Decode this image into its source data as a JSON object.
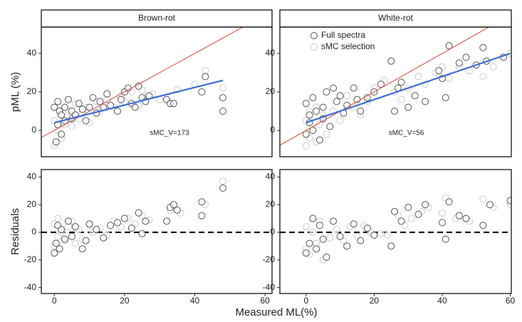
{
  "chart_data": [
    {
      "type": "scatter",
      "title": "Brown-rot",
      "ylabel": "pML (%)",
      "annotation": "sMC_V=173",
      "xlim": [
        -3.7,
        62
      ],
      "ylim": [
        -13.7,
        53.7
      ],
      "yticks": [
        0,
        20,
        40
      ],
      "series": [
        {
          "name": "Full spectra",
          "color": "#555555",
          "x": [
            0,
            0.5,
            1,
            1,
            1.5,
            2,
            2,
            3,
            3,
            4,
            5,
            5,
            6,
            7,
            8,
            9,
            10,
            11,
            12,
            13,
            14,
            15,
            16,
            18,
            19,
            20,
            21,
            22,
            23,
            24,
            25,
            26,
            27,
            32,
            33,
            34,
            42,
            43,
            48,
            48
          ],
          "values": [
            12,
            -6,
            15,
            3,
            10,
            -2,
            8,
            5,
            12,
            16,
            6,
            10,
            8,
            14,
            11,
            5,
            12,
            17,
            9,
            15,
            12,
            19,
            13,
            10,
            16,
            20,
            22,
            14,
            12,
            23,
            17,
            15,
            18,
            16,
            14,
            14,
            20,
            28,
            17,
            10
          ]
        },
        {
          "name": "sMC selection",
          "color": "#cccccc",
          "x": [
            0,
            0,
            1,
            1,
            2,
            2,
            3,
            4,
            5,
            6,
            7,
            8,
            9,
            10,
            12,
            13,
            15,
            17,
            19,
            20,
            22,
            24,
            25,
            26,
            28,
            30,
            35,
            40,
            43,
            48
          ],
          "values": [
            -8,
            5,
            0,
            12,
            -4,
            8,
            3,
            10,
            2,
            14,
            6,
            9,
            12,
            4,
            15,
            10,
            16,
            12,
            18,
            15,
            20,
            13,
            21,
            17,
            19,
            16,
            21,
            24,
            31,
            22
          ]
        }
      ],
      "lines": [
        {
          "color": "#e06050",
          "x": [
            -3.7,
            62
          ],
          "values": [
            -3.7,
            62
          ]
        },
        {
          "color": "#3a6fd8",
          "x": [
            0,
            48
          ],
          "values": [
            4,
            26
          ]
        }
      ]
    },
    {
      "type": "scatter",
      "title": "White-rot",
      "annotation": "sMC_V=56",
      "legend": "top-left",
      "xlim": [
        -7.7,
        60.3
      ],
      "ylim": [
        -13.7,
        53.7
      ],
      "yticks": [
        0,
        20,
        40
      ],
      "series": [
        {
          "name": "Full spectra",
          "color": "#555555",
          "x": [
            0,
            0,
            1,
            1,
            2,
            2,
            3,
            4,
            5,
            5,
            6,
            7,
            8,
            9,
            10,
            11,
            12,
            14,
            15,
            16,
            18,
            20,
            22,
            25,
            26,
            27,
            28,
            30,
            32,
            35,
            39,
            40,
            41,
            42,
            45,
            47,
            50,
            52,
            53,
            58
          ],
          "values": [
            14,
            -2,
            8,
            4,
            17,
            0,
            10,
            -5,
            12,
            6,
            20,
            2,
            22,
            15,
            18,
            9,
            13,
            22,
            16,
            10,
            17,
            20,
            24,
            36,
            10,
            22,
            25,
            12,
            18,
            15,
            31,
            27,
            17,
            44,
            35,
            38,
            34,
            43,
            36,
            38
          ]
        },
        {
          "name": "sMC selection",
          "color": "#cccccc",
          "x": [
            0,
            0,
            1,
            1,
            2,
            3,
            3,
            4,
            5,
            6,
            8,
            10,
            12,
            14,
            16,
            18,
            20,
            23,
            26,
            28,
            30,
            33,
            35,
            38,
            40,
            42,
            45,
            48,
            52,
            55,
            60
          ],
          "values": [
            -8,
            5,
            -4,
            10,
            0,
            -6,
            12,
            3,
            8,
            -2,
            10,
            5,
            18,
            12,
            8,
            15,
            22,
            26,
            20,
            16,
            22,
            28,
            24,
            30,
            33,
            27,
            33,
            31,
            28,
            33,
            40
          ]
        }
      ],
      "lines": [
        {
          "color": "#e06050",
          "x": [
            -7.7,
            60.3
          ],
          "values": [
            -7.7,
            60.3
          ]
        },
        {
          "color": "#3a6fd8",
          "x": [
            0,
            60
          ],
          "values": [
            4,
            40
          ]
        }
      ]
    },
    {
      "type": "scatter",
      "ylabel": "Residuals",
      "xlabel": "Measured ML(%)",
      "hline": 0,
      "xlim": [
        -3.7,
        62
      ],
      "ylim": [
        -44.3,
        45.4
      ],
      "xticks": [
        0,
        20,
        40,
        60
      ],
      "yticks": [
        -40,
        -20,
        0,
        20,
        40
      ],
      "series": [
        {
          "name": "Full spectra",
          "color": "#555555",
          "x": [
            0,
            0.5,
            1,
            1.5,
            2,
            3,
            4,
            5,
            6,
            8,
            9,
            10,
            12,
            14,
            16,
            18,
            20,
            22,
            24,
            25,
            26,
            32,
            33,
            34,
            35,
            42,
            42,
            48
          ],
          "values": [
            -15,
            -8,
            5,
            -12,
            2,
            -5,
            8,
            -3,
            4,
            -12,
            -6,
            6,
            2,
            -4,
            5,
            7,
            10,
            3,
            14,
            -1,
            8,
            8,
            18,
            20,
            16,
            22,
            12,
            32
          ]
        },
        {
          "name": "sMC selection",
          "color": "#cccccc",
          "x": [
            0,
            0,
            1,
            1,
            2,
            3,
            4,
            5,
            6,
            7,
            8,
            10,
            11,
            13,
            15,
            17,
            19,
            21,
            23,
            25,
            27,
            33,
            36,
            43,
            48
          ],
          "values": [
            -10,
            6,
            -3,
            10,
            0,
            -6,
            4,
            8,
            -8,
            2,
            -5,
            5,
            0,
            3,
            -2,
            8,
            4,
            10,
            6,
            12,
            9,
            16,
            14,
            20,
            37
          ]
        }
      ]
    },
    {
      "type": "scatter",
      "hline": 0,
      "xlim": [
        -7.7,
        60.3
      ],
      "ylim": [
        -44.3,
        45.4
      ],
      "xticks": [
        0,
        20,
        40,
        60
      ],
      "yticks": [
        -40,
        -20,
        0,
        20,
        40
      ],
      "series": [
        {
          "name": "Full spectra",
          "color": "#555555",
          "x": [
            0,
            1,
            2,
            3,
            4,
            5,
            6,
            8,
            10,
            12,
            14,
            16,
            18,
            20,
            25,
            26,
            28,
            30,
            33,
            35,
            40,
            41,
            42,
            45,
            47,
            52,
            54,
            60
          ],
          "values": [
            -15,
            -8,
            10,
            -12,
            5,
            -5,
            -18,
            8,
            -3,
            -10,
            6,
            -6,
            3,
            -2,
            -10,
            15,
            8,
            18,
            13,
            20,
            7,
            -5,
            22,
            12,
            10,
            5,
            20,
            23
          ]
        },
        {
          "name": "sMC selection",
          "color": "#cccccc",
          "x": [
            0,
            0,
            1,
            2,
            3,
            4,
            5,
            7,
            9,
            11,
            13,
            15,
            17,
            19,
            22,
            24,
            27,
            29,
            31,
            34,
            36,
            40,
            41,
            44,
            48,
            52,
            55,
            60
          ],
          "values": [
            -12,
            4,
            -16,
            0,
            -8,
            8,
            -20,
            -4,
            2,
            -6,
            4,
            -3,
            5,
            0,
            -1,
            -2,
            12,
            5,
            10,
            15,
            18,
            14,
            25,
            10,
            8,
            24,
            18,
            20
          ]
        }
      ]
    }
  ]
}
